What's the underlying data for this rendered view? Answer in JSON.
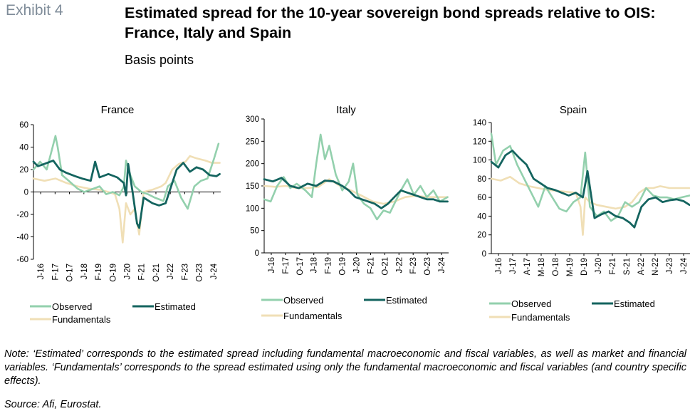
{
  "header": {
    "exhibit": "Exhibit 4",
    "title": "Estimated spread for the 10-year sovereign bond spreads relative to OIS: France, Italy and Spain",
    "subtitle": "Basis points"
  },
  "footer": {
    "note": "Note: ‘Estimated’ corresponds to the estimated spread including fundamental macroeconomic and fiscal variables, as well as market and financial variables. ‘Fundamentals’ corresponds to the spread estimated using only the fundamental macroeconomic and fiscal variables (and country specific effects).",
    "source": "Source: Afi, Eurostat."
  },
  "colors": {
    "observed": "#93d0ad",
    "estimated": "#14645f",
    "fundamentals": "#f0dfb6"
  },
  "chart_data": [
    {
      "type": "line",
      "title": "France",
      "ylim": [
        -60,
        60
      ],
      "yticks": [
        -60,
        -40,
        -20,
        0,
        20,
        40,
        60
      ],
      "xlim": [
        2016.0,
        2024.5
      ],
      "xticks": [
        "J-16",
        "F-17",
        "O-17",
        "J-18",
        "F-19",
        "O-19",
        "J-20",
        "F-21",
        "O-21",
        "J-22",
        "F-23",
        "O-23",
        "J-24"
      ],
      "legend": [
        "Observed",
        "Estimated",
        "Fundamentals"
      ],
      "series": [
        {
          "name": "Observed",
          "x": [
            2016.0,
            2016.3,
            2016.6,
            2016.8,
            2017.0,
            2017.1,
            2017.3,
            2017.6,
            2018.0,
            2018.3,
            2018.6,
            2019.0,
            2019.3,
            2019.6,
            2019.9,
            2020.1,
            2020.2,
            2020.4,
            2020.6,
            2020.9,
            2021.2,
            2021.5,
            2021.9,
            2022.1,
            2022.4,
            2022.7,
            2023.0,
            2023.3,
            2023.6,
            2023.9,
            2024.2,
            2024.4
          ],
          "values": [
            20,
            27,
            20,
            35,
            50,
            40,
            15,
            10,
            3,
            0,
            2,
            5,
            -2,
            0,
            -3,
            5,
            28,
            15,
            5,
            0,
            -2,
            -5,
            -8,
            5,
            10,
            -5,
            -15,
            5,
            10,
            12,
            30,
            43
          ]
        },
        {
          "name": "Estimated",
          "x": [
            2016.0,
            2016.2,
            2016.5,
            2016.9,
            2017.2,
            2017.5,
            2017.9,
            2018.2,
            2018.6,
            2018.8,
            2019.0,
            2019.4,
            2019.8,
            2020.1,
            2020.2,
            2020.3,
            2020.5,
            2020.7,
            2020.8,
            2021.0,
            2021.4,
            2021.7,
            2022.0,
            2022.2,
            2022.5,
            2022.8,
            2023.1,
            2023.4,
            2023.7,
            2024.0,
            2024.3,
            2024.45
          ],
          "values": [
            27,
            23,
            25,
            28,
            20,
            17,
            14,
            12,
            10,
            27,
            13,
            16,
            13,
            8,
            -3,
            25,
            0,
            -28,
            -32,
            -5,
            -10,
            -12,
            -10,
            2,
            20,
            26,
            18,
            22,
            20,
            15,
            14,
            16
          ]
        },
        {
          "name": "Fundamentals",
          "x": [
            2016.0,
            2016.5,
            2017.0,
            2017.5,
            2018.0,
            2018.5,
            2019.0,
            2019.4,
            2019.7,
            2019.9,
            2020.05,
            2020.2,
            2020.4,
            2020.6,
            2020.8,
            2021.0,
            2021.4,
            2021.8,
            2022.0,
            2022.3,
            2022.6,
            2022.9,
            2023.1,
            2023.4,
            2023.8,
            2024.1,
            2024.45
          ],
          "values": [
            12,
            10,
            12,
            8,
            5,
            3,
            2,
            0,
            -2,
            -15,
            -45,
            -10,
            -20,
            -15,
            -38,
            0,
            2,
            5,
            8,
            20,
            25,
            27,
            32,
            30,
            28,
            26,
            26
          ]
        }
      ]
    },
    {
      "type": "line",
      "title": "Italy",
      "ylim": [
        0,
        300
      ],
      "yticks": [
        0,
        50,
        100,
        150,
        200,
        250,
        300
      ],
      "xlim": [
        2016.0,
        2024.5
      ],
      "xticks": [
        "J-16",
        "F-17",
        "O-17",
        "J-18",
        "F-19",
        "O-19",
        "J-20",
        "F-21",
        "O-21",
        "J-22",
        "F-23",
        "O-23",
        "J-24"
      ],
      "legend": [
        "Observed",
        "Estimated",
        "Fundamentals"
      ],
      "series": [
        {
          "name": "Observed",
          "x": [
            2016.0,
            2016.3,
            2016.6,
            2016.9,
            2017.2,
            2017.5,
            2017.9,
            2018.2,
            2018.4,
            2018.6,
            2018.8,
            2019.0,
            2019.3,
            2019.6,
            2019.9,
            2020.1,
            2020.3,
            2020.6,
            2020.9,
            2021.2,
            2021.5,
            2021.8,
            2022.0,
            2022.3,
            2022.6,
            2022.9,
            2023.2,
            2023.5,
            2023.8,
            2024.1,
            2024.45
          ],
          "values": [
            120,
            115,
            150,
            170,
            145,
            155,
            140,
            125,
            200,
            265,
            210,
            240,
            175,
            140,
            160,
            200,
            130,
            110,
            100,
            75,
            95,
            90,
            110,
            140,
            165,
            130,
            150,
            125,
            140,
            115,
            125
          ]
        },
        {
          "name": "Estimated",
          "x": [
            2016.0,
            2016.4,
            2016.8,
            2017.2,
            2017.6,
            2018.0,
            2018.4,
            2018.8,
            2019.2,
            2019.6,
            2019.9,
            2020.2,
            2020.5,
            2020.8,
            2021.1,
            2021.4,
            2021.7,
            2022.0,
            2022.3,
            2022.6,
            2022.9,
            2023.2,
            2023.5,
            2023.8,
            2024.1,
            2024.45
          ],
          "values": [
            165,
            160,
            168,
            150,
            145,
            155,
            150,
            162,
            160,
            150,
            140,
            125,
            120,
            115,
            110,
            100,
            110,
            125,
            140,
            135,
            130,
            125,
            120,
            120,
            115,
            115
          ]
        },
        {
          "name": "Fundamentals",
          "x": [
            2016.0,
            2016.5,
            2017.0,
            2017.5,
            2018.0,
            2018.5,
            2019.0,
            2019.5,
            2020.0,
            2020.5,
            2021.0,
            2021.5,
            2022.0,
            2022.5,
            2023.0,
            2023.5,
            2024.0,
            2024.45
          ],
          "values": [
            150,
            148,
            150,
            145,
            145,
            148,
            165,
            150,
            140,
            128,
            115,
            110,
            115,
            125,
            128,
            125,
            125,
            125
          ]
        }
      ]
    },
    {
      "type": "line",
      "title": "Spain",
      "ylim": [
        0,
        140
      ],
      "yticks": [
        0,
        20,
        40,
        60,
        80,
        100,
        120,
        140
      ],
      "xlim": [
        2016.0,
        2024.5
      ],
      "xticks": [
        "J-16",
        "J-17",
        "A-17",
        "M-18",
        "O-18",
        "M-19",
        "D-19",
        "J-20",
        "F-21",
        "S-21",
        "A-22",
        "N-22",
        "J-23",
        "J-24"
      ],
      "legend": [
        "Observed",
        "Estimated",
        "Fundamentals"
      ],
      "series": [
        {
          "name": "Observed",
          "x": [
            2016.0,
            2016.2,
            2016.5,
            2016.8,
            2017.1,
            2017.4,
            2017.7,
            2018.0,
            2018.3,
            2018.6,
            2018.9,
            2019.2,
            2019.5,
            2019.8,
            2020.0,
            2020.2,
            2020.5,
            2020.8,
            2021.1,
            2021.4,
            2021.7,
            2022.0,
            2022.3,
            2022.6,
            2022.9,
            2023.2,
            2023.5,
            2023.8,
            2024.1,
            2024.45
          ],
          "values": [
            128,
            95,
            110,
            115,
            95,
            80,
            65,
            50,
            72,
            60,
            48,
            45,
            55,
            60,
            108,
            50,
            40,
            45,
            35,
            40,
            55,
            50,
            55,
            70,
            62,
            60,
            60,
            58,
            60,
            62
          ]
        },
        {
          "name": "Estimated",
          "x": [
            2016.0,
            2016.3,
            2016.6,
            2016.9,
            2017.2,
            2017.5,
            2017.8,
            2018.1,
            2018.4,
            2018.7,
            2019.0,
            2019.3,
            2019.6,
            2019.9,
            2020.1,
            2020.4,
            2020.7,
            2021.0,
            2021.3,
            2021.6,
            2021.9,
            2022.1,
            2022.4,
            2022.7,
            2023.0,
            2023.3,
            2023.6,
            2023.9,
            2024.2,
            2024.45
          ],
          "values": [
            98,
            92,
            105,
            110,
            102,
            95,
            80,
            75,
            70,
            68,
            65,
            62,
            65,
            60,
            88,
            38,
            42,
            45,
            40,
            38,
            33,
            28,
            50,
            58,
            60,
            55,
            57,
            58,
            56,
            52
          ]
        },
        {
          "name": "Fundamentals",
          "x": [
            2016.0,
            2016.4,
            2016.8,
            2017.2,
            2017.6,
            2018.0,
            2018.4,
            2018.8,
            2019.2,
            2019.6,
            2019.8,
            2019.9,
            2020.0,
            2020.2,
            2020.5,
            2020.9,
            2021.3,
            2021.7,
            2022.0,
            2022.3,
            2022.6,
            2022.9,
            2023.2,
            2023.6,
            2024.0,
            2024.45
          ],
          "values": [
            80,
            78,
            82,
            75,
            72,
            70,
            68,
            67,
            66,
            65,
            50,
            20,
            60,
            55,
            52,
            50,
            48,
            50,
            55,
            65,
            70,
            70,
            72,
            70,
            70,
            70
          ]
        }
      ]
    }
  ]
}
